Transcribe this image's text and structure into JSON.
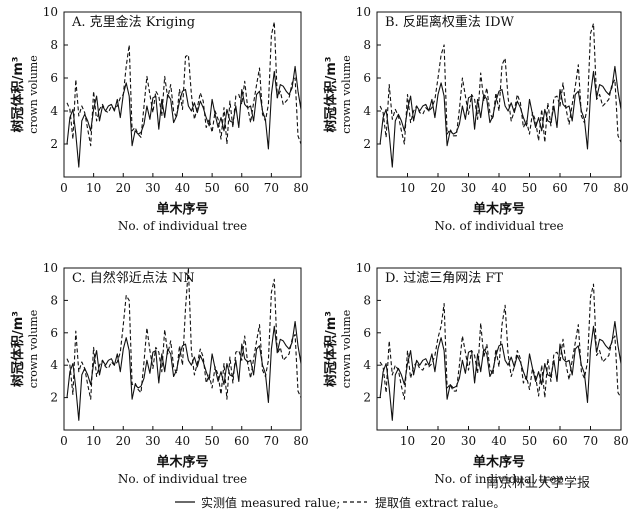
{
  "legend": {
    "measured_label": "实测值 measured ralue;",
    "extract_label": "提取值 extract ralue。"
  },
  "watermark": "南京林业大学学报",
  "chart_data": [
    {
      "type": "line",
      "title": "A. 克里金法 Kriging",
      "xlabel_cn": "单木序号",
      "xlabel_en": "No. of individual tree",
      "ylabel_cn": "树冠体积/m³",
      "ylabel_en": "crown volume",
      "xlim": [
        0,
        80
      ],
      "ylim": [
        0,
        10
      ],
      "xticks": [
        0,
        10,
        20,
        30,
        40,
        50,
        60,
        70,
        80
      ],
      "yticks": [
        2,
        4,
        6,
        8,
        10
      ],
      "series": [
        {
          "name": "实测值 measured ralue",
          "style": "solid",
          "values": [
            2.0,
            3.6,
            4.1,
            2.6,
            0.6,
            3.4,
            3.8,
            3.4,
            2.8,
            4.1,
            4.9,
            3.4,
            4.3,
            4.0,
            4.3,
            4.4,
            4.0,
            4.7,
            3.6,
            5.0,
            5.7,
            4.9,
            1.9,
            2.8,
            2.6,
            2.7,
            3.2,
            4.3,
            3.5,
            4.8,
            4.9,
            2.9,
            4.7,
            3.6,
            5.0,
            4.7,
            3.3,
            3.7,
            4.6,
            5.2,
            5.3,
            4.3,
            4.0,
            4.5,
            3.9,
            4.6,
            4.2,
            3.6,
            3.1,
            4.7,
            3.8,
            3.0,
            3.6,
            2.8,
            4.1,
            3.4,
            3.3,
            4.3,
            3.0,
            5.3,
            4.4,
            4.2,
            4.3,
            3.4,
            5.0,
            5.2,
            4.0,
            3.5,
            1.7,
            5.0,
            6.4,
            4.8,
            5.6,
            5.5,
            5.2,
            5.0,
            5.4,
            6.7,
            5.2,
            4.1
          ]
        },
        {
          "name": "提取值 extract ralue",
          "style": "dashed",
          "values": [
            4.5,
            4.1,
            2.3,
            5.9,
            3.7,
            4.3,
            3.9,
            2.9,
            1.9,
            5.2,
            3.4,
            4.1,
            4.4,
            4.0,
            3.9,
            4.3,
            4.1,
            4.3,
            4.8,
            5.0,
            6.7,
            8.0,
            2.8,
            3.0,
            2.6,
            2.4,
            4.3,
            6.1,
            5.0,
            3.9,
            5.2,
            4.9,
            3.7,
            6.1,
            4.8,
            5.6,
            4.0,
            3.6,
            5.3,
            4.1,
            7.3,
            7.4,
            5.0,
            3.5,
            4.2,
            5.1,
            4.6,
            3.0,
            3.5,
            2.7,
            4.0,
            3.5,
            2.3,
            4.2,
            2.0,
            4.6,
            3.0,
            4.9,
            5.0,
            4.4,
            5.8,
            4.2,
            3.3,
            4.5,
            5.6,
            6.6,
            3.8,
            3.4,
            4.4,
            8.6,
            9.4,
            4.8,
            5.2,
            4.4,
            4.6,
            4.8,
            5.7,
            6.0,
            2.5,
            2.0
          ]
        }
      ]
    },
    {
      "type": "line",
      "title": "B. 反距离权重法 IDW",
      "xlabel_cn": "单木序号",
      "xlabel_en": "No. of individual tree",
      "ylabel_cn": "树冠体积/m³",
      "ylabel_en": "crown volume",
      "xlim": [
        0,
        80
      ],
      "ylim": [
        0,
        10
      ],
      "xticks": [
        10,
        20,
        30,
        40,
        50,
        60,
        70,
        80
      ],
      "yticks": [
        2,
        4,
        6,
        8,
        10
      ],
      "series": [
        {
          "name": "实测值 measured ralue",
          "style": "solid",
          "values": [
            2.0,
            3.6,
            4.1,
            2.6,
            0.6,
            3.4,
            3.8,
            3.4,
            2.8,
            4.1,
            4.9,
            3.4,
            4.3,
            4.0,
            4.3,
            4.4,
            4.0,
            4.7,
            3.6,
            5.0,
            5.7,
            4.9,
            1.9,
            2.8,
            2.6,
            2.7,
            3.2,
            4.3,
            3.5,
            4.8,
            4.9,
            2.9,
            4.7,
            3.6,
            5.0,
            4.7,
            3.3,
            3.7,
            4.6,
            5.2,
            5.3,
            4.3,
            4.0,
            4.5,
            3.9,
            4.6,
            4.2,
            3.6,
            3.1,
            4.7,
            3.8,
            3.0,
            3.6,
            2.8,
            4.1,
            3.4,
            3.3,
            4.3,
            3.0,
            5.3,
            4.4,
            4.2,
            4.3,
            3.4,
            5.0,
            5.2,
            4.0,
            3.5,
            1.7,
            5.0,
            6.4,
            4.8,
            5.6,
            5.5,
            5.2,
            5.0,
            5.4,
            6.7,
            5.2,
            4.1
          ]
        },
        {
          "name": "提取值 extract ralue",
          "style": "dashed",
          "values": [
            4.3,
            3.9,
            2.4,
            5.6,
            3.5,
            4.1,
            3.7,
            2.8,
            2.0,
            5.0,
            3.3,
            4.0,
            4.3,
            3.9,
            3.8,
            4.2,
            4.0,
            4.2,
            4.7,
            6.0,
            7.4,
            8.0,
            2.6,
            2.9,
            2.5,
            2.5,
            4.1,
            6.0,
            4.9,
            3.8,
            5.0,
            4.7,
            3.5,
            6.3,
            4.6,
            5.4,
            3.9,
            3.5,
            5.1,
            4.0,
            6.8,
            7.2,
            4.8,
            3.4,
            4.0,
            5.0,
            4.5,
            3.0,
            3.4,
            2.6,
            3.9,
            3.4,
            2.2,
            4.1,
            2.1,
            4.5,
            3.1,
            4.8,
            4.9,
            4.3,
            5.7,
            4.1,
            3.2,
            4.4,
            5.5,
            6.8,
            3.7,
            3.3,
            4.3,
            8.7,
            9.3,
            4.7,
            5.0,
            4.3,
            4.5,
            4.7,
            5.6,
            5.9,
            2.5,
            2.1
          ]
        }
      ]
    },
    {
      "type": "line",
      "title": "C. 自然邻近点法 NN",
      "xlabel_cn": "单木序号",
      "xlabel_en": "No. of individual tree",
      "ylabel_cn": "树冠体积/m³",
      "ylabel_en": "crown volume",
      "xlim": [
        0,
        80
      ],
      "ylim": [
        0,
        10
      ],
      "xticks": [
        0,
        10,
        20,
        30,
        40,
        50,
        60,
        70,
        80
      ],
      "yticks": [
        2,
        4,
        6,
        8,
        10
      ],
      "series": [
        {
          "name": "实测值 measured ralue",
          "style": "solid",
          "values": [
            2.0,
            3.6,
            4.1,
            2.6,
            0.6,
            3.4,
            3.8,
            3.4,
            2.8,
            4.1,
            4.9,
            3.4,
            4.3,
            4.0,
            4.3,
            4.4,
            4.0,
            4.7,
            3.6,
            5.0,
            5.7,
            4.9,
            1.9,
            2.8,
            2.6,
            2.7,
            3.2,
            4.3,
            3.5,
            4.8,
            4.9,
            2.9,
            4.7,
            3.6,
            5.0,
            4.7,
            3.3,
            3.7,
            4.6,
            5.2,
            5.3,
            4.3,
            4.0,
            4.5,
            3.9,
            4.6,
            4.2,
            3.6,
            3.1,
            4.7,
            3.8,
            3.0,
            3.6,
            2.8,
            4.1,
            3.4,
            3.3,
            4.3,
            3.0,
            5.3,
            4.4,
            4.2,
            4.3,
            3.4,
            5.0,
            5.2,
            4.0,
            3.5,
            1.7,
            5.0,
            6.4,
            4.8,
            5.6,
            5.5,
            5.2,
            5.0,
            5.4,
            6.7,
            5.2,
            4.1
          ]
        },
        {
          "name": "提取值 extract ralue",
          "style": "dashed",
          "values": [
            4.4,
            4.0,
            2.2,
            6.1,
            3.6,
            4.2,
            3.8,
            2.8,
            1.9,
            5.1,
            3.3,
            4.0,
            4.3,
            3.9,
            3.8,
            4.2,
            4.0,
            4.2,
            4.8,
            6.5,
            8.3,
            8.0,
            2.8,
            2.9,
            2.5,
            2.3,
            4.2,
            6.3,
            4.9,
            3.8,
            5.1,
            4.8,
            3.6,
            6.2,
            4.7,
            5.5,
            3.9,
            3.5,
            5.2,
            4.0,
            7.5,
            10.0,
            4.9,
            3.4,
            4.1,
            5.0,
            4.5,
            2.9,
            3.4,
            2.6,
            3.9,
            3.4,
            2.2,
            4.1,
            1.9,
            4.5,
            2.9,
            4.8,
            4.9,
            4.3,
            5.8,
            4.1,
            3.2,
            4.4,
            5.5,
            6.5,
            3.7,
            3.3,
            4.3,
            8.5,
            9.3,
            4.7,
            5.1,
            4.3,
            4.5,
            4.7,
            5.6,
            5.9,
            2.4,
            2.0
          ]
        }
      ]
    },
    {
      "type": "line",
      "title": "D. 过滤三角网法 FT",
      "xlabel_cn": "单木序号",
      "xlabel_en": "No. of individual tree",
      "ylabel_cn": "树冠体积/m³",
      "ylabel_en": "crown volume",
      "xlim": [
        0,
        80
      ],
      "ylim": [
        0,
        10
      ],
      "xticks": [
        10,
        20,
        30,
        40,
        50,
        60,
        70,
        80
      ],
      "yticks": [
        2,
        4,
        6,
        8,
        10
      ],
      "series": [
        {
          "name": "实测值 measured ralue",
          "style": "solid",
          "values": [
            2.0,
            3.6,
            4.1,
            2.6,
            0.6,
            3.4,
            3.8,
            3.4,
            2.8,
            4.1,
            4.9,
            3.4,
            4.3,
            4.0,
            4.3,
            4.4,
            4.0,
            4.7,
            3.6,
            5.0,
            5.7,
            4.9,
            1.9,
            2.8,
            2.6,
            2.7,
            3.2,
            4.3,
            3.5,
            4.8,
            4.9,
            2.9,
            4.7,
            3.6,
            5.0,
            4.7,
            3.3,
            3.7,
            4.6,
            5.2,
            5.3,
            4.3,
            4.0,
            4.5,
            3.9,
            4.6,
            4.2,
            3.6,
            3.1,
            4.7,
            3.8,
            3.0,
            3.6,
            2.8,
            4.1,
            3.4,
            3.3,
            4.3,
            3.0,
            5.3,
            4.4,
            4.2,
            4.3,
            3.4,
            5.0,
            5.2,
            4.0,
            3.5,
            1.7,
            5.0,
            6.4,
            4.8,
            5.6,
            5.5,
            5.2,
            5.0,
            5.4,
            6.7,
            5.2,
            4.1
          ]
        },
        {
          "name": "提取值 extract ralue",
          "style": "dashed",
          "values": [
            4.2,
            3.9,
            2.3,
            5.5,
            3.4,
            4.0,
            3.7,
            2.7,
            1.9,
            4.9,
            3.2,
            3.9,
            4.2,
            3.8,
            3.7,
            4.1,
            3.9,
            4.1,
            4.6,
            5.7,
            6.4,
            7.8,
            2.6,
            2.8,
            2.4,
            2.4,
            4.0,
            5.8,
            4.8,
            3.7,
            4.9,
            4.6,
            3.5,
            6.6,
            4.5,
            5.3,
            3.8,
            3.4,
            5.0,
            3.9,
            6.5,
            7.7,
            4.7,
            3.3,
            3.9,
            4.9,
            4.4,
            2.9,
            3.3,
            2.5,
            3.8,
            3.3,
            2.1,
            4.0,
            2.0,
            4.4,
            3.0,
            4.7,
            4.8,
            4.2,
            5.6,
            4.0,
            3.1,
            4.3,
            5.4,
            6.5,
            3.6,
            3.2,
            4.2,
            8.2,
            9.0,
            4.6,
            4.9,
            4.2,
            4.4,
            4.6,
            5.5,
            5.8,
            2.3,
            2.0
          ]
        }
      ]
    }
  ]
}
